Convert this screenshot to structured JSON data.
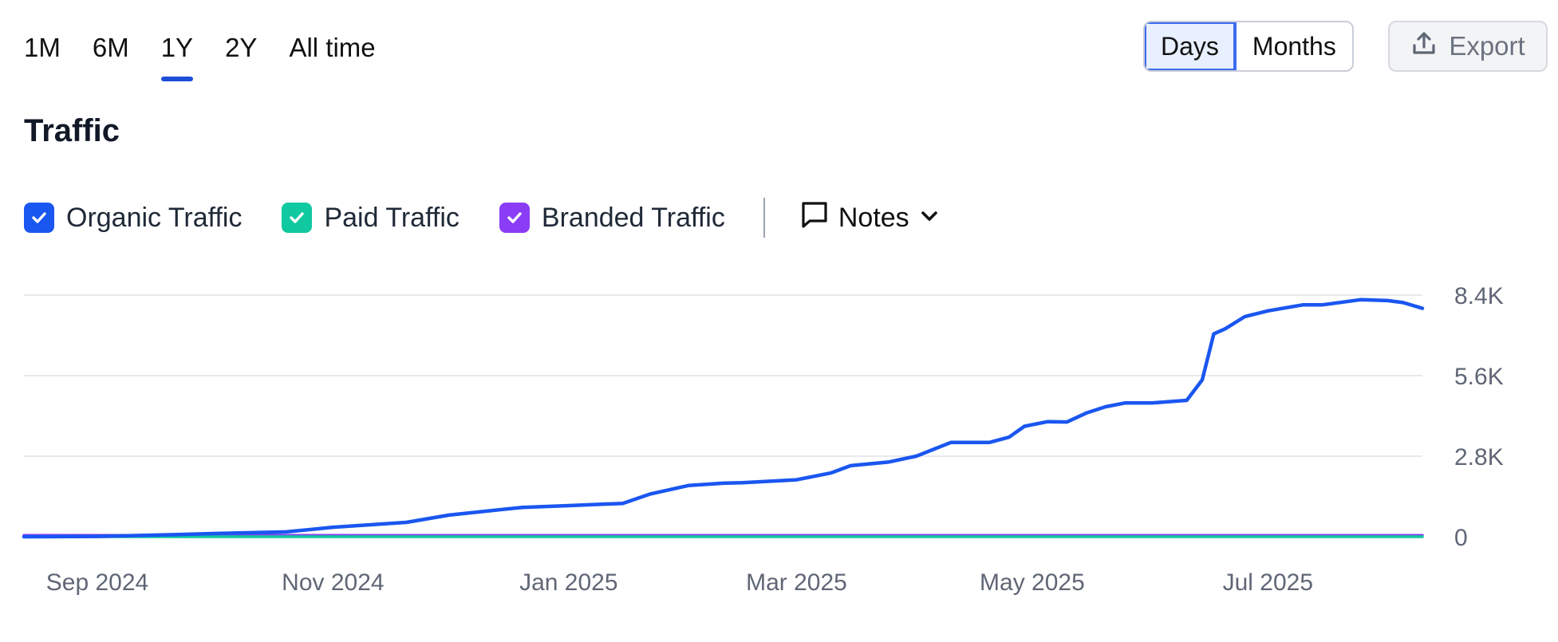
{
  "period_tabs": [
    "1M",
    "6M",
    "1Y",
    "2Y",
    "All time"
  ],
  "active_period": "1Y",
  "granularity": {
    "days": "Days",
    "months": "Months",
    "active": "Days"
  },
  "export_label": "Export",
  "title": "Traffic",
  "legend": [
    {
      "label": "Organic Traffic",
      "color": "#1a56f0",
      "checked": true
    },
    {
      "label": "Paid Traffic",
      "color": "#10c9a0",
      "checked": true
    },
    {
      "label": "Branded Traffic",
      "color": "#8b3cf5",
      "checked": true
    }
  ],
  "notes_label": "Notes",
  "chart_data": {
    "type": "line",
    "x_tick_labels": [
      "Sep 2024",
      "Nov 2024",
      "Jan 2025",
      "Mar 2025",
      "May 2025",
      "Jul 2025"
    ],
    "y_tick_labels": [
      "0",
      "2.8K",
      "5.6K",
      "8.4K"
    ],
    "ylim": [
      0,
      8400
    ],
    "grid": true,
    "y_axis_position": "right",
    "series": [
      {
        "name": "Organic Traffic",
        "color": "#1a56f0",
        "x": [
          "2024-08-13",
          "2024-09-01",
          "2024-09-20",
          "2024-10-01",
          "2024-10-20",
          "2024-11-01",
          "2024-11-20",
          "2024-12-01",
          "2024-12-20",
          "2025-01-01",
          "2025-01-15",
          "2025-01-22",
          "2025-02-01",
          "2025-02-10",
          "2025-02-15",
          "2025-03-01",
          "2025-03-10",
          "2025-03-15",
          "2025-03-25",
          "2025-04-01",
          "2025-04-10",
          "2025-04-20",
          "2025-04-25",
          "2025-04-29",
          "2025-05-05",
          "2025-05-10",
          "2025-05-15",
          "2025-05-20",
          "2025-05-25",
          "2025-06-01",
          "2025-06-10",
          "2025-06-14",
          "2025-06-17",
          "2025-06-20",
          "2025-06-25",
          "2025-07-01",
          "2025-07-10",
          "2025-07-15",
          "2025-07-25",
          "2025-08-01",
          "2025-08-05",
          "2025-08-10"
        ],
        "values": [
          0,
          10,
          70,
          110,
          170,
          330,
          500,
          750,
          1020,
          1080,
          1160,
          1480,
          1780,
          1860,
          1880,
          1980,
          2220,
          2470,
          2600,
          2800,
          3280,
          3280,
          3460,
          3840,
          4000,
          3990,
          4300,
          4520,
          4650,
          4650,
          4740,
          5450,
          7050,
          7230,
          7650,
          7850,
          8060,
          8060,
          8240,
          8210,
          8140,
          7940
        ]
      },
      {
        "name": "Paid Traffic",
        "color": "#10c9a0",
        "x": [
          "2024-08-13",
          "2025-08-10"
        ],
        "values": [
          0,
          0
        ]
      },
      {
        "name": "Branded Traffic",
        "color": "#8b3cf5",
        "x": [
          "2024-08-13",
          "2025-08-10"
        ],
        "values": [
          50,
          50
        ]
      }
    ]
  }
}
